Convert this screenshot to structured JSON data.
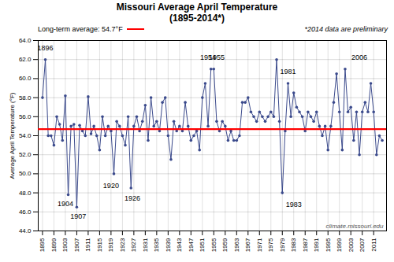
{
  "chart_data": {
    "type": "line",
    "title": "Missouri Average April Temperature",
    "subtitle": "(1895-2014*)",
    "ylabel": "Average April Temperature (°F)",
    "x": [
      1895,
      1896,
      1897,
      1898,
      1899,
      1900,
      1901,
      1902,
      1903,
      1904,
      1905,
      1906,
      1907,
      1908,
      1909,
      1910,
      1911,
      1912,
      1913,
      1914,
      1915,
      1916,
      1917,
      1918,
      1919,
      1920,
      1921,
      1922,
      1923,
      1924,
      1925,
      1926,
      1927,
      1928,
      1929,
      1930,
      1931,
      1932,
      1933,
      1934,
      1935,
      1936,
      1937,
      1938,
      1939,
      1940,
      1941,
      1942,
      1943,
      1944,
      1945,
      1946,
      1947,
      1948,
      1949,
      1950,
      1951,
      1952,
      1953,
      1954,
      1955,
      1956,
      1957,
      1958,
      1959,
      1960,
      1961,
      1962,
      1963,
      1964,
      1965,
      1966,
      1967,
      1968,
      1969,
      1970,
      1971,
      1972,
      1973,
      1974,
      1975,
      1976,
      1977,
      1978,
      1979,
      1980,
      1981,
      1982,
      1983,
      1984,
      1985,
      1986,
      1987,
      1988,
      1989,
      1990,
      1991,
      1992,
      1993,
      1994,
      1995,
      1996,
      1997,
      1998,
      1999,
      2000,
      2001,
      2002,
      2003,
      2004,
      2005,
      2006,
      2007,
      2008,
      2009,
      2010,
      2011,
      2012,
      2013,
      2014
    ],
    "values": [
      58.0,
      62.0,
      54.0,
      54.0,
      53.0,
      56.0,
      55.2,
      53.5,
      58.2,
      47.8,
      55.0,
      55.2,
      46.5,
      55.1,
      54.5,
      54.0,
      58.1,
      54.2,
      55.0,
      54.0,
      52.5,
      56.0,
      54.0,
      55.0,
      54.5,
      50.0,
      55.5,
      55.0,
      54.0,
      53.0,
      56.0,
      48.5,
      55.0,
      56.0,
      54.5,
      55.5,
      57.2,
      53.5,
      58.0,
      55.0,
      55.5,
      54.5,
      57.5,
      58.0,
      54.0,
      51.5,
      55.5,
      54.5,
      55.0,
      54.5,
      57.5,
      55.0,
      53.5,
      54.0,
      54.5,
      52.5,
      58.0,
      59.5,
      55.0,
      61.0,
      61.0,
      55.5,
      54.5,
      55.5,
      55.0,
      53.5,
      54.5,
      53.5,
      53.5,
      54.0,
      57.5,
      57.5,
      58.0,
      56.5,
      56.0,
      55.5,
      56.5,
      56.0,
      55.5,
      56.0,
      56.5,
      56.0,
      62.0,
      55.5,
      48.0,
      54.5,
      59.5,
      56.0,
      58.5,
      57.0,
      56.5,
      56.0,
      54.5,
      56.5,
      56.0,
      55.5,
      56.5,
      55.0,
      54.0,
      55.0,
      52.5,
      55.0,
      57.5,
      60.5,
      56.5,
      52.5,
      61.0,
      56.5,
      57.0,
      53.5,
      56.5,
      52.0,
      56.5,
      57.5,
      56.5,
      59.5,
      56.5,
      52.0,
      54.0,
      53.5
    ],
    "color": "#3B4A8C",
    "marker": "circle",
    "xlim": [
      1893.5,
      2015.5
    ],
    "xticks": [
      1895,
      1899,
      1903,
      1907,
      1911,
      1915,
      1919,
      1923,
      1927,
      1931,
      1935,
      1939,
      1943,
      1947,
      1951,
      1955,
      1959,
      1963,
      1967,
      1971,
      1975,
      1979,
      1983,
      1987,
      1991,
      1995,
      1999,
      2003,
      2007,
      2011
    ],
    "ylim": [
      44.0,
      64.0
    ],
    "yticks": [
      {
        "value": 44,
        "label": "44.0"
      },
      {
        "value": 46,
        "label": "46.0"
      },
      {
        "value": 48,
        "label": "48.0"
      },
      {
        "value": 50,
        "label": "50.0"
      },
      {
        "value": 52,
        "label": "52.0"
      },
      {
        "value": 54,
        "label": "54.0"
      },
      {
        "value": 56,
        "label": "56.0"
      },
      {
        "value": 58,
        "label": "58.0"
      },
      {
        "value": 60,
        "label": "60.0"
      },
      {
        "value": 62,
        "label": "62.0"
      },
      {
        "value": 64,
        "label": "64.0"
      }
    ],
    "grid": true,
    "reference_line": {
      "value": 54.7,
      "label": "Long-term average: 54.7°F",
      "color": "#FF0000"
    },
    "note": "*2014 data are preliminary",
    "source": "climate.missouri.edu",
    "annotations": [
      {
        "text": "1896",
        "x": 1896,
        "y": 63.0
      },
      {
        "text": "1904",
        "x": 1903,
        "y": 46.6
      },
      {
        "text": "1907",
        "x": 1907.5,
        "y": 45.3
      },
      {
        "text": "1920",
        "x": 1919,
        "y": 48.5
      },
      {
        "text": "1926",
        "x": 1926.5,
        "y": 47.2
      },
      {
        "text": "1954",
        "x": 1953,
        "y": 62.0
      },
      {
        "text": "1955",
        "x": 1956,
        "y": 62.0
      },
      {
        "text": "1981",
        "x": 1981,
        "y": 60.5
      },
      {
        "text": "1983",
        "x": 1983,
        "y": 46.5
      },
      {
        "text": "2006",
        "x": 2006,
        "y": 62.0
      }
    ]
  }
}
